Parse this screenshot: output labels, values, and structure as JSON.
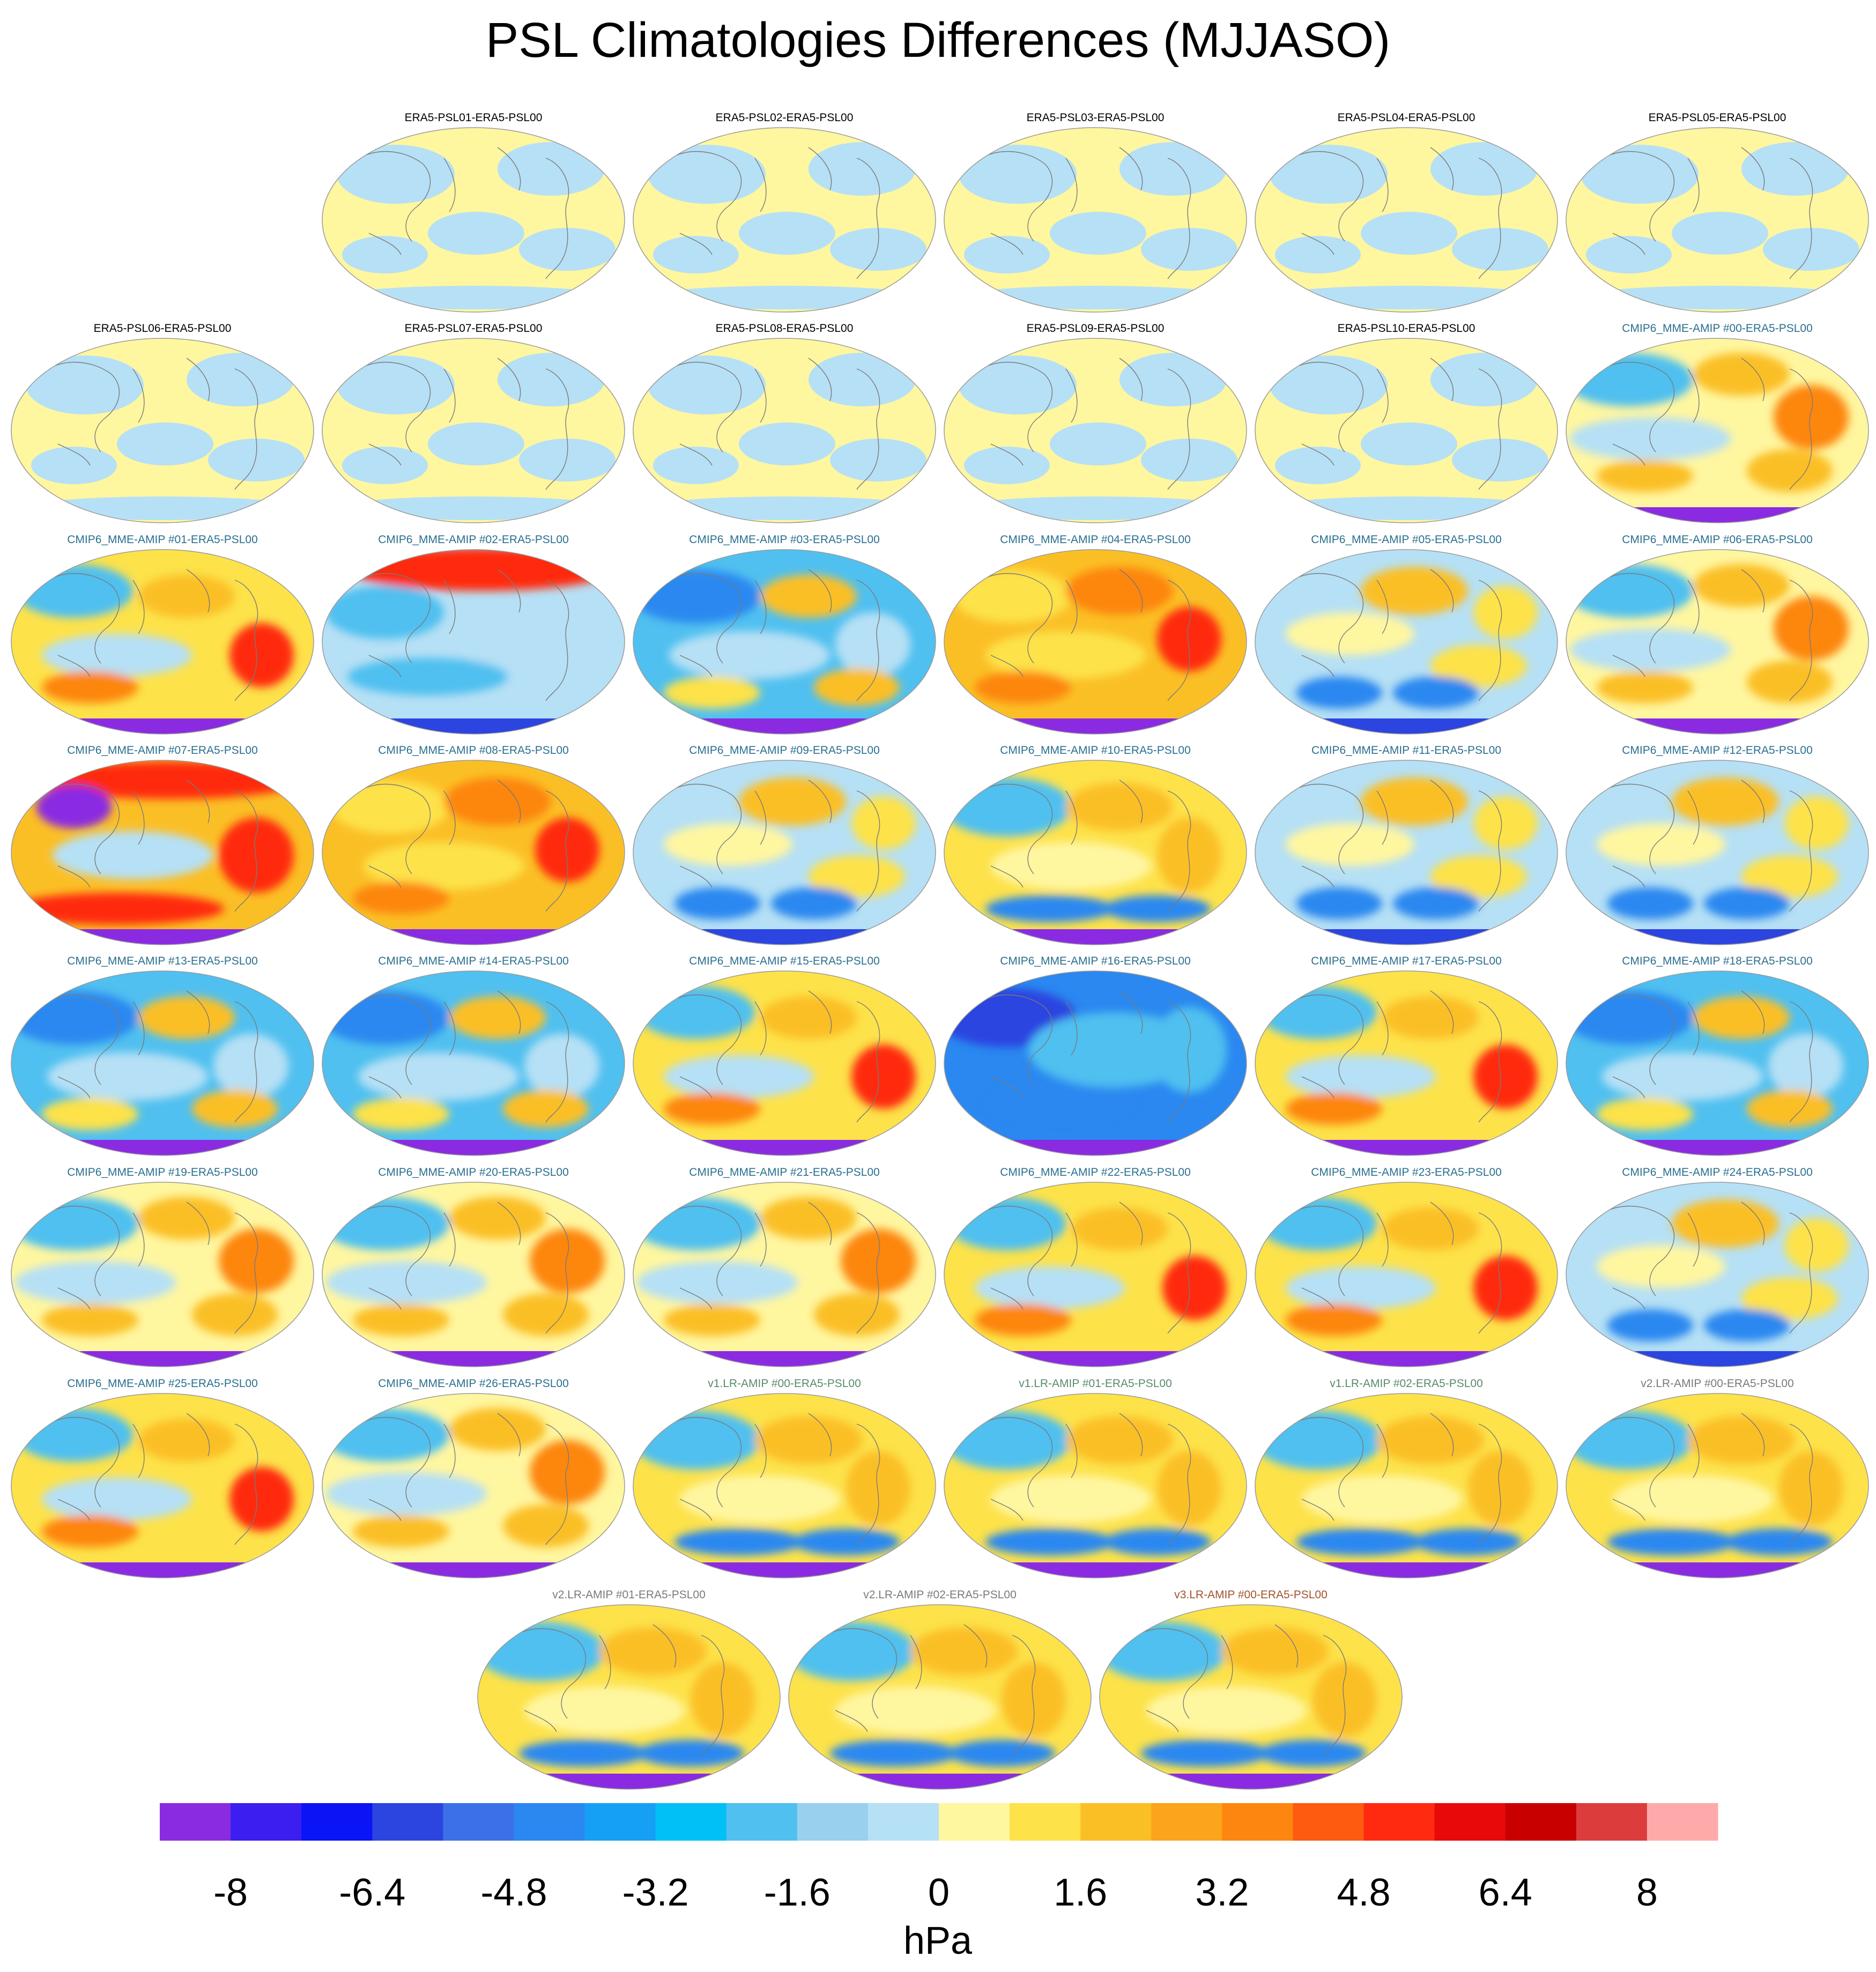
{
  "title": "PSL Climatologies Differences (MJJASO)",
  "panels": [
    {
      "title": "ERA5-PSL01-ERA5-PSL00",
      "color": "#000000",
      "style": "near-zero"
    },
    {
      "title": "ERA5-PSL02-ERA5-PSL00",
      "color": "#000000",
      "style": "near-zero"
    },
    {
      "title": "ERA5-PSL03-ERA5-PSL00",
      "color": "#000000",
      "style": "near-zero"
    },
    {
      "title": "ERA5-PSL04-ERA5-PSL00",
      "color": "#000000",
      "style": "near-zero"
    },
    {
      "title": "ERA5-PSL05-ERA5-PSL00",
      "color": "#000000",
      "style": "near-zero"
    },
    {
      "title": "ERA5-PSL06-ERA5-PSL00",
      "color": "#000000",
      "style": "near-zero"
    },
    {
      "title": "ERA5-PSL07-ERA5-PSL00",
      "color": "#000000",
      "style": "near-zero"
    },
    {
      "title": "ERA5-PSL08-ERA5-PSL00",
      "color": "#000000",
      "style": "near-zero"
    },
    {
      "title": "ERA5-PSL09-ERA5-PSL00",
      "color": "#000000",
      "style": "near-zero"
    },
    {
      "title": "ERA5-PSL10-ERA5-PSL00",
      "color": "#000000",
      "style": "near-zero"
    },
    {
      "title": "CMIP6_MME-AMIP  #00-ERA5-PSL00",
      "color": "#2a6f8f",
      "style": "mixed"
    },
    {
      "title": "CMIP6_MME-AMIP  #01-ERA5-PSL00",
      "color": "#2a6f8f",
      "style": "mixed-warm"
    },
    {
      "title": "CMIP6_MME-AMIP  #02-ERA5-PSL00",
      "color": "#2a6f8f",
      "style": "cool-redtop"
    },
    {
      "title": "CMIP6_MME-AMIP  #03-ERA5-PSL00",
      "color": "#2a6f8f",
      "style": "cool"
    },
    {
      "title": "CMIP6_MME-AMIP  #04-ERA5-PSL00",
      "color": "#2a6f8f",
      "style": "warm"
    },
    {
      "title": "CMIP6_MME-AMIP  #05-ERA5-PSL00",
      "color": "#2a6f8f",
      "style": "mixed-cool"
    },
    {
      "title": "CMIP6_MME-AMIP  #06-ERA5-PSL00",
      "color": "#2a6f8f",
      "style": "mixed"
    },
    {
      "title": "CMIP6_MME-AMIP  #07-ERA5-PSL00",
      "color": "#2a6f8f",
      "style": "hot"
    },
    {
      "title": "CMIP6_MME-AMIP  #08-ERA5-PSL00",
      "color": "#2a6f8f",
      "style": "warm"
    },
    {
      "title": "CMIP6_MME-AMIP  #09-ERA5-PSL00",
      "color": "#2a6f8f",
      "style": "mixed-cool"
    },
    {
      "title": "CMIP6_MME-AMIP  #10-ERA5-PSL00",
      "color": "#2a6f8f",
      "style": "warm-southcool"
    },
    {
      "title": "CMIP6_MME-AMIP  #11-ERA5-PSL00",
      "color": "#2a6f8f",
      "style": "mixed-cool"
    },
    {
      "title": "CMIP6_MME-AMIP  #12-ERA5-PSL00",
      "color": "#2a6f8f",
      "style": "mixed-cool"
    },
    {
      "title": "CMIP6_MME-AMIP  #13-ERA5-PSL00",
      "color": "#2a6f8f",
      "style": "cool"
    },
    {
      "title": "CMIP6_MME-AMIP  #14-ERA5-PSL00",
      "color": "#2a6f8f",
      "style": "cool"
    },
    {
      "title": "CMIP6_MME-AMIP  #15-ERA5-PSL00",
      "color": "#2a6f8f",
      "style": "mixed-warm"
    },
    {
      "title": "CMIP6_MME-AMIP  #16-ERA5-PSL00",
      "color": "#2a6f8f",
      "style": "cool-strong"
    },
    {
      "title": "CMIP6_MME-AMIP  #17-ERA5-PSL00",
      "color": "#2a6f8f",
      "style": "mixed-warm"
    },
    {
      "title": "CMIP6_MME-AMIP  #18-ERA5-PSL00",
      "color": "#2a6f8f",
      "style": "cool"
    },
    {
      "title": "CMIP6_MME-AMIP  #19-ERA5-PSL00",
      "color": "#2a6f8f",
      "style": "mixed"
    },
    {
      "title": "CMIP6_MME-AMIP  #20-ERA5-PSL00",
      "color": "#2a6f8f",
      "style": "mixed"
    },
    {
      "title": "CMIP6_MME-AMIP  #21-ERA5-PSL00",
      "color": "#2a6f8f",
      "style": "mixed"
    },
    {
      "title": "CMIP6_MME-AMIP  #22-ERA5-PSL00",
      "color": "#2a6f8f",
      "style": "mixed-warm"
    },
    {
      "title": "CMIP6_MME-AMIP  #23-ERA5-PSL00",
      "color": "#2a6f8f",
      "style": "mixed-warm"
    },
    {
      "title": "CMIP6_MME-AMIP  #24-ERA5-PSL00",
      "color": "#2a6f8f",
      "style": "mixed-cool"
    },
    {
      "title": "CMIP6_MME-AMIP  #25-ERA5-PSL00",
      "color": "#2a6f8f",
      "style": "mixed-warm"
    },
    {
      "title": "CMIP6_MME-AMIP  #26-ERA5-PSL00",
      "color": "#2a6f8f",
      "style": "mixed"
    },
    {
      "title": "v1.LR-AMIP  #00-ERA5-PSL00",
      "color": "#5a8a6a",
      "style": "warm-southcool"
    },
    {
      "title": "v1.LR-AMIP  #01-ERA5-PSL00",
      "color": "#5a8a6a",
      "style": "warm-southcool"
    },
    {
      "title": "v1.LR-AMIP  #02-ERA5-PSL00",
      "color": "#5a8a6a",
      "style": "warm-southcool"
    },
    {
      "title": "v2.LR-AMIP  #00-ERA5-PSL00",
      "color": "#7a7a7a",
      "style": "warm-southcool"
    },
    {
      "title": "v2.LR-AMIP  #01-ERA5-PSL00",
      "color": "#7a7a7a",
      "style": "warm-southcool"
    },
    {
      "title": "v2.LR-AMIP  #02-ERA5-PSL00",
      "color": "#7a7a7a",
      "style": "warm-southcool"
    },
    {
      "title": "v3.LR-AMIP  #00-ERA5-PSL00",
      "color": "#a0522d",
      "style": "warm-southcool"
    }
  ],
  "chart_data": {
    "type": "heatmap",
    "title": "PSL Climatologies Differences (MJJASO)",
    "colorbar": {
      "unit": "hPa",
      "tick_labels": [
        "-8",
        "-6.4",
        "-4.8",
        "-3.2",
        "-1.6",
        "0",
        "1.6",
        "3.2",
        "4.8",
        "6.4",
        "8"
      ],
      "tick_values": [
        -8,
        -6.4,
        -4.8,
        -3.2,
        -1.6,
        0,
        1.6,
        3.2,
        4.8,
        6.4,
        8
      ],
      "levels": [
        -8.8,
        -8,
        -7.2,
        -6.4,
        -5.6,
        -4.8,
        -4,
        -3.2,
        -2.4,
        -1.6,
        -0.8,
        0,
        0.8,
        1.6,
        2.4,
        3.2,
        4,
        4.8,
        5.6,
        6.4,
        7.2,
        8,
        8.8
      ],
      "colors": [
        "#8a2be2",
        "#3d1ef0",
        "#0a14f5",
        "#2c44e0",
        "#3c70e8",
        "#2a88f0",
        "#16a0f5",
        "#00c0f5",
        "#50c0f0",
        "#98d0ee",
        "#b6e0f5",
        "#fff6a0",
        "#fde24a",
        "#fbbf26",
        "#fca41c",
        "#fd8610",
        "#fe5a10",
        "#ff2a10",
        "#e80a0a",
        "#c80000",
        "#dc3c3c",
        "#ffaaaa"
      ]
    }
  }
}
